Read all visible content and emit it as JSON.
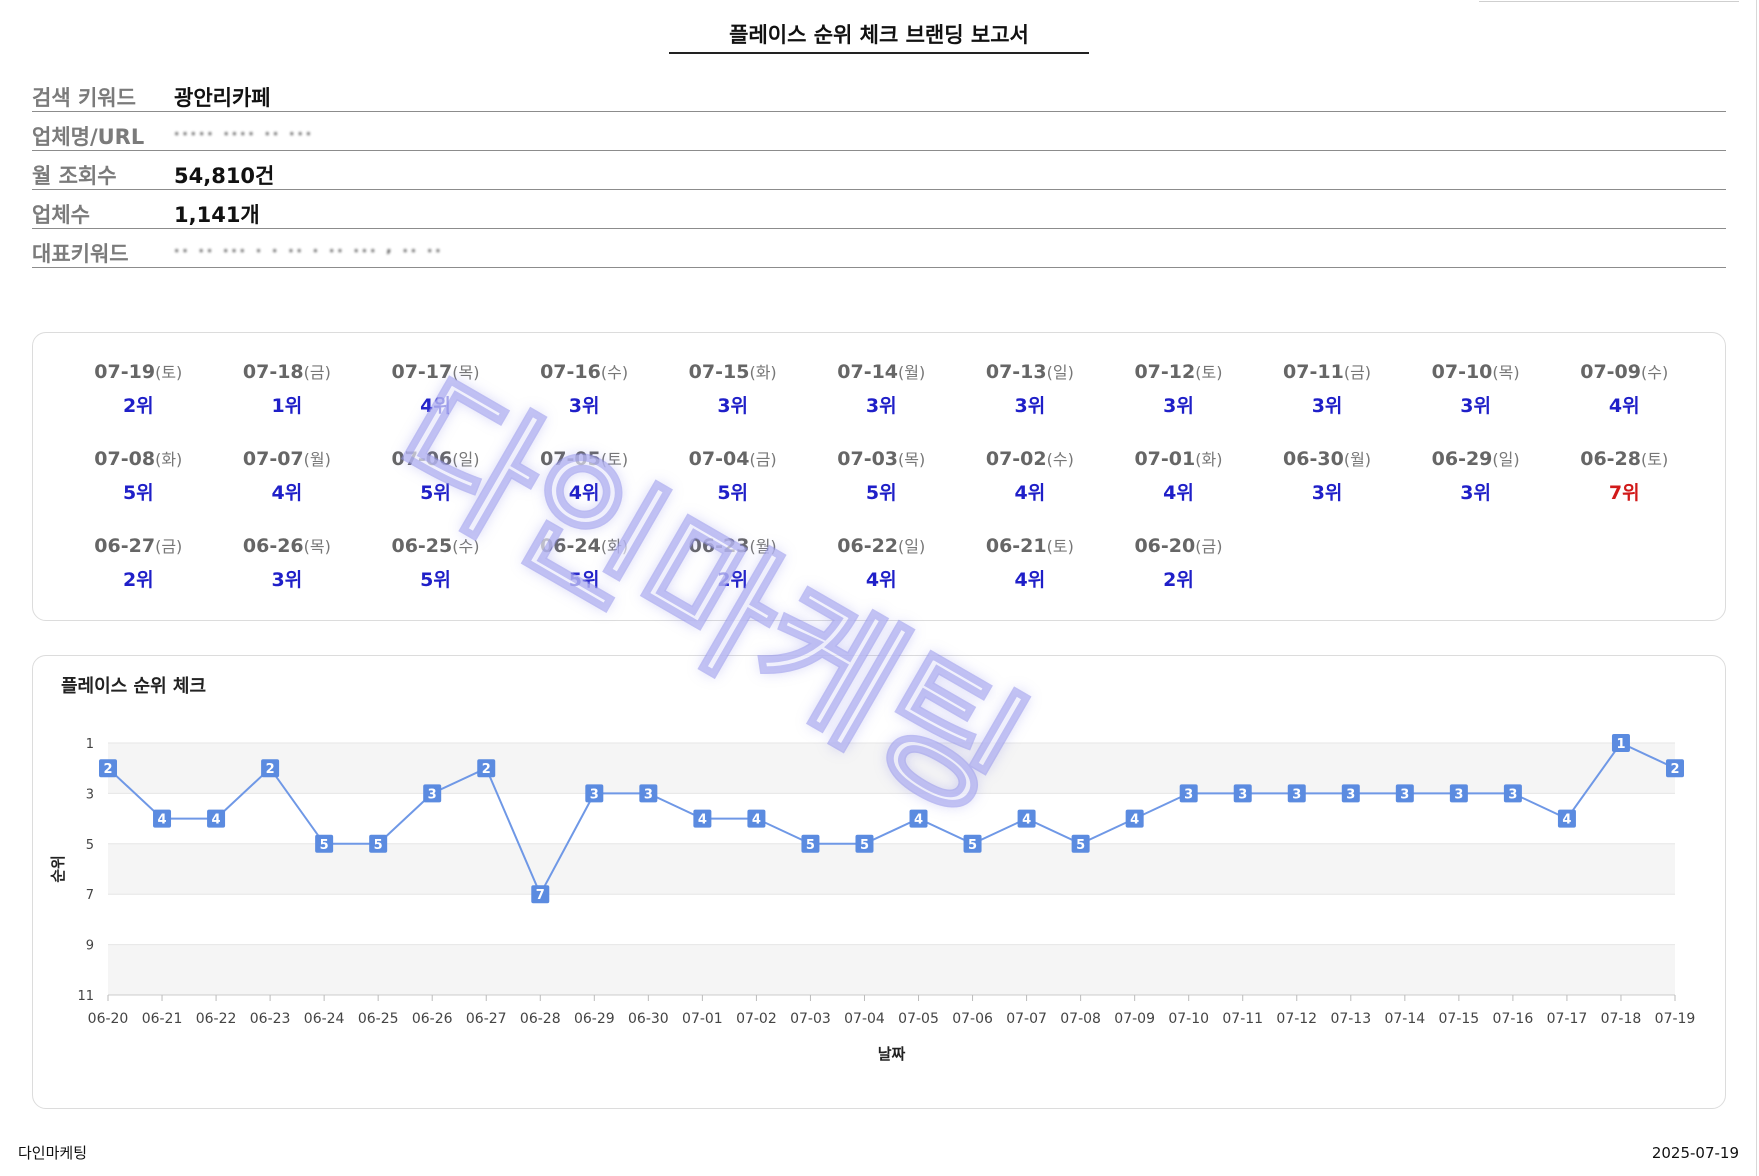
{
  "report": {
    "title": "플레이스 순위 체크 브랜딩 보고서"
  },
  "info": {
    "rows": [
      {
        "label": "검색 키워드",
        "value": "광안리카페"
      },
      {
        "label": "업체명/URL",
        "value": "..... ....  .. ..."
      },
      {
        "label": "월 조회수",
        "value": "54,810건"
      },
      {
        "label": "업체수",
        "value": "1,141개"
      },
      {
        "label": "대표키워드",
        "value": "..  ..  ... . .  .. . .. ... , .. .."
      }
    ]
  },
  "rank_cards": [
    {
      "date": "07-19",
      "day": "(토)",
      "rank": "2위",
      "worst": false
    },
    {
      "date": "07-18",
      "day": "(금)",
      "rank": "1위",
      "worst": false
    },
    {
      "date": "07-17",
      "day": "(목)",
      "rank": "4위",
      "worst": false
    },
    {
      "date": "07-16",
      "day": "(수)",
      "rank": "3위",
      "worst": false
    },
    {
      "date": "07-15",
      "day": "(화)",
      "rank": "3위",
      "worst": false
    },
    {
      "date": "07-14",
      "day": "(월)",
      "rank": "3위",
      "worst": false
    },
    {
      "date": "07-13",
      "day": "(일)",
      "rank": "3위",
      "worst": false
    },
    {
      "date": "07-12",
      "day": "(토)",
      "rank": "3위",
      "worst": false
    },
    {
      "date": "07-11",
      "day": "(금)",
      "rank": "3위",
      "worst": false
    },
    {
      "date": "07-10",
      "day": "(목)",
      "rank": "3위",
      "worst": false
    },
    {
      "date": "07-09",
      "day": "(수)",
      "rank": "4위",
      "worst": false
    },
    {
      "date": "07-08",
      "day": "(화)",
      "rank": "5위",
      "worst": false
    },
    {
      "date": "07-07",
      "day": "(월)",
      "rank": "4위",
      "worst": false
    },
    {
      "date": "07-06",
      "day": "(일)",
      "rank": "5위",
      "worst": false
    },
    {
      "date": "07-05",
      "day": "(토)",
      "rank": "4위",
      "worst": false
    },
    {
      "date": "07-04",
      "day": "(금)",
      "rank": "5위",
      "worst": false
    },
    {
      "date": "07-03",
      "day": "(목)",
      "rank": "5위",
      "worst": false
    },
    {
      "date": "07-02",
      "day": "(수)",
      "rank": "4위",
      "worst": false
    },
    {
      "date": "07-01",
      "day": "(화)",
      "rank": "4위",
      "worst": false
    },
    {
      "date": "06-30",
      "day": "(월)",
      "rank": "3위",
      "worst": false
    },
    {
      "date": "06-29",
      "day": "(일)",
      "rank": "3위",
      "worst": false
    },
    {
      "date": "06-28",
      "day": "(토)",
      "rank": "7위",
      "worst": true
    },
    {
      "date": "06-27",
      "day": "(금)",
      "rank": "2위",
      "worst": false
    },
    {
      "date": "06-26",
      "day": "(목)",
      "rank": "3위",
      "worst": false
    },
    {
      "date": "06-25",
      "day": "(수)",
      "rank": "5위",
      "worst": false
    },
    {
      "date": "06-24",
      "day": "(화)",
      "rank": "5위",
      "worst": false
    },
    {
      "date": "06-23",
      "day": "(월)",
      "rank": "2위",
      "worst": false
    },
    {
      "date": "06-22",
      "day": "(일)",
      "rank": "4위",
      "worst": false
    },
    {
      "date": "06-21",
      "day": "(토)",
      "rank": "4위",
      "worst": false
    },
    {
      "date": "06-20",
      "day": "(금)",
      "rank": "2위",
      "worst": false
    }
  ],
  "colors": {
    "rank_text": "#1f1fc8",
    "worst_rank_text": "#d11a1a",
    "line": "#6f98e6",
    "marker": "#5b8be0",
    "band": "#f5f5f5"
  },
  "chart_data": {
    "type": "line",
    "title": "플레이스 순위 체크",
    "xlabel": "날짜",
    "ylabel": "순위",
    "categories": [
      "06-20",
      "06-21",
      "06-22",
      "06-23",
      "06-24",
      "06-25",
      "06-26",
      "06-27",
      "06-28",
      "06-29",
      "06-30",
      "07-01",
      "07-02",
      "07-03",
      "07-04",
      "07-05",
      "07-06",
      "07-07",
      "07-08",
      "07-09",
      "07-10",
      "07-11",
      "07-12",
      "07-13",
      "07-14",
      "07-15",
      "07-16",
      "07-17",
      "07-18",
      "07-19"
    ],
    "series": [
      {
        "values": [
          2,
          4,
          4,
          2,
          5,
          5,
          3,
          2,
          7,
          3,
          3,
          4,
          4,
          5,
          5,
          4,
          5,
          4,
          5,
          4,
          3,
          3,
          3,
          3,
          3,
          3,
          3,
          4,
          1,
          2
        ]
      }
    ],
    "ylim": [
      1,
      11
    ],
    "y_reversed": true,
    "yticks": [
      "1",
      "3",
      "5",
      "7",
      "9",
      "11"
    ],
    "grid": "alternating-bands",
    "data_labels": true
  },
  "watermark": {
    "text": "다인마케팅"
  },
  "footer": {
    "brand": "다인마케팅",
    "date": "2025-07-19"
  }
}
